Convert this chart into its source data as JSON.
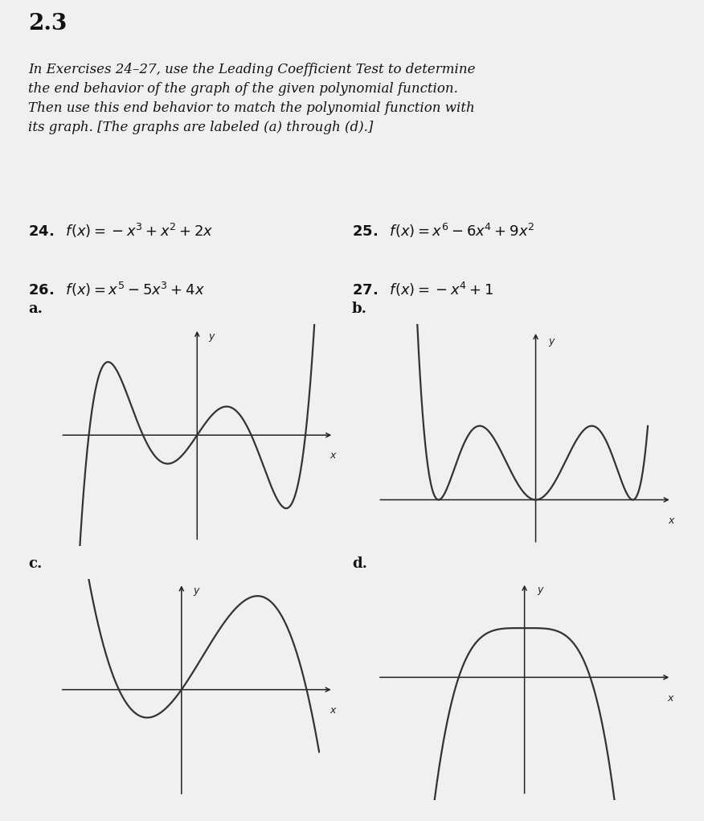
{
  "background_color": "#f0f0f0",
  "line_color": "#333333",
  "axis_color": "#222222",
  "text_color": "#111111",
  "title": "2.3",
  "desc": "In Exercises 24–27, use the Leading Coefficient Test to determine\nthe end behavior of the graph of the given polynomial function.\nThen use this end behavior to match the polynomial function with\nits graph. [The graphs are labeled (a) through (d).]",
  "eq24": "24.",
  "eq24math": "$f(x) = -x^3 + x^2 + 2x$",
  "eq25": "25.",
  "eq25math": "$f(x) = x^6 - 6x^4 + 9x^2$",
  "eq26": "26.",
  "eq26math": "$f(x) = x^5 - 5x^3 + 4x$",
  "eq27": "27.",
  "eq27math": "$f(x) = -x^4 + 1$",
  "graph_labels": [
    "a.",
    "b.",
    "c.",
    "d."
  ],
  "xlim_a": [
    -2.4,
    2.4
  ],
  "ylim_a": [
    -3.0,
    3.0
  ],
  "xcenter_a": 0.3,
  "ycenter_a": 0.0,
  "xlim_b": [
    -3.2,
    3.2
  ],
  "ylim_b": [
    -0.5,
    4.5
  ],
  "xcenter_b": -0.3,
  "ycenter_b": 1.5,
  "xlim_c": [
    -1.6,
    2.2
  ],
  "ylim_c": [
    -2.5,
    2.5
  ],
  "xcenter_c": 0.3,
  "ycenter_c": 0.0,
  "xlim_d": [
    -2.0,
    2.0
  ],
  "ylim_d": [
    -2.0,
    2.0
  ],
  "xcenter_d": 0.0,
  "ycenter_d": 0.0
}
